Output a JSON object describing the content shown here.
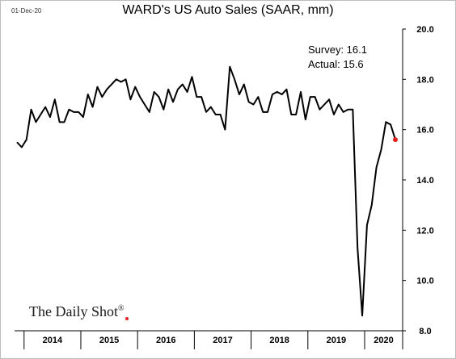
{
  "header": {
    "date": "01-Dec-20",
    "title": "WARD's US Auto Sales (SAAR, mm)"
  },
  "brand": {
    "name": "The Daily Shot",
    "mark": "®",
    "accent": "#e0211f"
  },
  "annotations": {
    "survey": "Survey: 16.1",
    "actual": "Actual:  15.6"
  },
  "colors": {
    "line": "#000000",
    "last_point": "#e0211f"
  },
  "chart_data": {
    "type": "line",
    "title": "WARD's US Auto Sales (SAAR, mm)",
    "xlabel": "",
    "ylabel": "",
    "ylim": [
      8.0,
      20.0
    ],
    "yticks": [
      8.0,
      10.0,
      12.0,
      14.0,
      16.0,
      18.0,
      20.0
    ],
    "y_axis_side": "right",
    "grid": false,
    "legend": "none",
    "year_labels": [
      "2014",
      "2015",
      "2016",
      "2017",
      "2018",
      "2019",
      "2020"
    ],
    "x_start": "2013-11",
    "x_end": "2020-11",
    "series": [
      {
        "values": [
          15.5,
          15.3,
          15.6,
          16.8,
          16.3,
          16.6,
          16.9,
          16.5,
          17.2,
          16.3,
          16.3,
          16.8,
          16.7,
          16.7,
          16.5,
          17.4,
          16.9,
          17.7,
          17.3,
          17.6,
          17.8,
          18.0,
          17.9,
          18.0,
          17.2,
          17.7,
          17.3,
          17.0,
          16.7,
          17.5,
          17.3,
          16.8,
          17.6,
          17.1,
          17.6,
          17.8,
          17.5,
          18.1,
          17.3,
          17.3,
          16.7,
          16.9,
          16.6,
          16.6,
          16.0,
          18.5,
          18.0,
          17.4,
          17.8,
          17.1,
          17.0,
          17.3,
          16.7,
          16.7,
          17.4,
          17.5,
          17.4,
          17.6,
          16.6,
          16.6,
          17.5,
          16.4,
          17.3,
          17.3,
          16.8,
          17.0,
          17.2,
          16.6,
          17.0,
          16.7,
          16.8,
          16.8,
          11.3,
          8.6,
          12.2,
          13.0,
          14.5,
          15.2,
          16.3,
          16.2,
          15.6
        ]
      }
    ],
    "survey": 16.1,
    "actual": 15.6
  }
}
